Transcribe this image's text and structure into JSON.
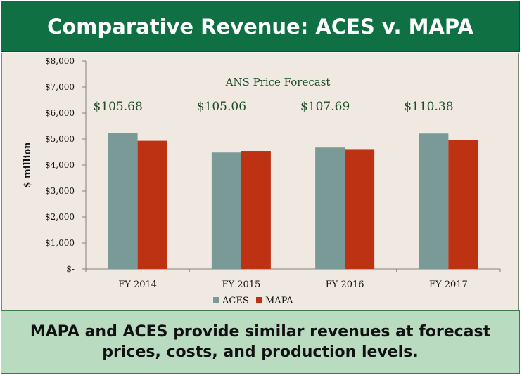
{
  "title": "Comparative Revenue: ACES v. MAPA",
  "footer": "MAPA and ACES provide similar revenues at forecast prices, costs, and production levels.",
  "colors": {
    "title_bg": "#0f7143",
    "ACES": "#7a9a97",
    "MAPA": "#be3214",
    "plot_bg": "#efe9e1",
    "footer_bg": "#b9dbbf"
  },
  "chart_data": {
    "type": "bar",
    "subtitle": "ANS Price Forecast",
    "ylabel": "$ million",
    "xlabel": "",
    "ylim": [
      0,
      8000
    ],
    "yticks": [
      0,
      1000,
      2000,
      3000,
      4000,
      5000,
      6000,
      7000,
      8000
    ],
    "ytick_labels": [
      "$-",
      "$1,000",
      "$2,000",
      "$3,000",
      "$4,000",
      "$5,000",
      "$6,000",
      "$7,000",
      "$8,000"
    ],
    "categories": [
      "FY 2014",
      "FY 2015",
      "FY 2016",
      "FY 2017"
    ],
    "price_labels": [
      "$105.68",
      "$105.06",
      "$107.69",
      "$110.38"
    ],
    "series": [
      {
        "name": "ACES",
        "values": [
          5230,
          4480,
          4670,
          5210
        ]
      },
      {
        "name": "MAPA",
        "values": [
          4930,
          4540,
          4610,
          4970
        ]
      }
    ],
    "legend": "bottom",
    "grid": false
  }
}
